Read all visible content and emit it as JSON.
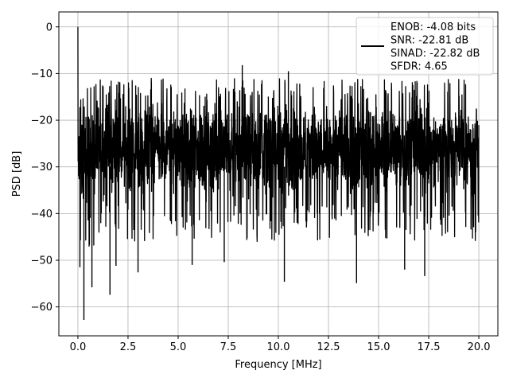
{
  "chart_data": {
    "type": "line",
    "xlabel": "Frequency [MHz]",
    "ylabel": "PSD [dB]",
    "xlim": [
      -0.95,
      20.95
    ],
    "ylim": [
      -66.2,
      3.2
    ],
    "xticks": [
      0.0,
      2.5,
      5.0,
      7.5,
      10.0,
      12.5,
      15.0,
      17.5,
      20.0
    ],
    "xtick_labels": [
      "0.0",
      "2.5",
      "5.0",
      "7.5",
      "10.0",
      "12.5",
      "15.0",
      "17.5",
      "20.0"
    ],
    "yticks": [
      0,
      -10,
      -20,
      -30,
      -40,
      -50,
      -60
    ],
    "ytick_labels": [
      "0",
      "−10",
      "−20",
      "−30",
      "−40",
      "−50",
      "−60"
    ],
    "grid": true,
    "legend_position": "top-right",
    "series": [
      {
        "color": "#000000",
        "description": "dense noisy PSD trace; fluctuates roughly between -45 and -12 dB across 0-20 MHz",
        "start": {
          "x": 0.0,
          "y": 0.0
        },
        "envelope": {
          "upper": -11,
          "lower": -45
        },
        "notable_points": [
          {
            "x": 0.0,
            "y": 0.0
          },
          {
            "x": 0.1,
            "y": -51.5
          },
          {
            "x": 0.3,
            "y": -62.8
          },
          {
            "x": 0.7,
            "y": -55.8
          },
          {
            "x": 1.6,
            "y": -57.4
          },
          {
            "x": 1.9,
            "y": -51.2
          },
          {
            "x": 3.0,
            "y": -52.6
          },
          {
            "x": 5.7,
            "y": -51.0
          },
          {
            "x": 7.3,
            "y": -50.4
          },
          {
            "x": 10.3,
            "y": -54.6
          },
          {
            "x": 13.9,
            "y": -54.9
          },
          {
            "x": 16.3,
            "y": -52.0
          },
          {
            "x": 17.3,
            "y": -53.4
          },
          {
            "x": 8.2,
            "y": -8.2
          },
          {
            "x": 10.5,
            "y": -9.5
          }
        ]
      }
    ],
    "legend": {
      "lines": [
        "ENOB: -4.08 bits",
        "SNR: -22.81 dB",
        "SINAD: -22.82 dB",
        "SFDR: 4.65"
      ]
    }
  }
}
